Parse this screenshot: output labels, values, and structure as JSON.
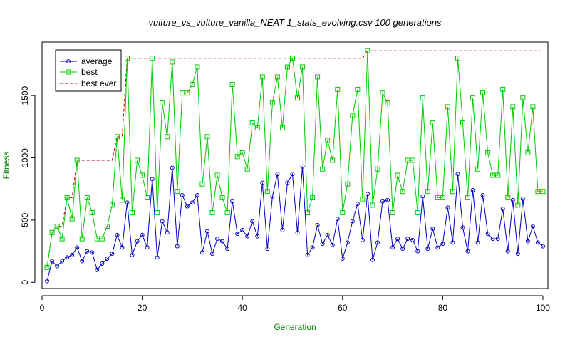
{
  "chart_data": {
    "type": "line",
    "title": "vulture_vs_vulture_vanilla_NEAT 1_stats_evolving.csv 100 generations",
    "xlabel": "Generation",
    "ylabel": "Fitness",
    "xlim": [
      0,
      101
    ],
    "ylim": [
      -50,
      1930
    ],
    "xticks": [
      0,
      20,
      40,
      60,
      80,
      100
    ],
    "yticks": [
      0,
      500,
      1000,
      1500
    ],
    "legend_position": "top-left",
    "grid": false,
    "colors": {
      "average": "#0000c0",
      "best": "#00cc00",
      "best_ever": "#aa0000",
      "axis_label": "#008000"
    },
    "x": [
      1,
      2,
      3,
      4,
      5,
      6,
      7,
      8,
      9,
      10,
      11,
      12,
      13,
      14,
      15,
      16,
      17,
      18,
      19,
      20,
      21,
      22,
      23,
      24,
      25,
      26,
      27,
      28,
      29,
      30,
      31,
      32,
      33,
      34,
      35,
      36,
      37,
      38,
      39,
      40,
      41,
      42,
      43,
      44,
      45,
      46,
      47,
      48,
      49,
      50,
      51,
      52,
      53,
      54,
      55,
      56,
      57,
      58,
      59,
      60,
      61,
      62,
      63,
      64,
      65,
      66,
      67,
      68,
      69,
      70,
      71,
      72,
      73,
      74,
      75,
      76,
      77,
      78,
      79,
      80,
      81,
      82,
      83,
      84,
      85,
      86,
      87,
      88,
      89,
      90,
      91,
      92,
      93,
      94,
      95,
      96,
      97,
      98,
      99,
      100
    ],
    "series": [
      {
        "name": "average",
        "style": "solid-circle",
        "values": [
          10,
          170,
          130,
          170,
          200,
          220,
          280,
          170,
          250,
          240,
          100,
          150,
          190,
          230,
          380,
          280,
          640,
          220,
          330,
          380,
          280,
          830,
          200,
          490,
          400,
          920,
          290,
          700,
          610,
          640,
          700,
          240,
          410,
          230,
          350,
          330,
          270,
          650,
          390,
          420,
          370,
          490,
          370,
          800,
          270,
          690,
          870,
          420,
          800,
          870,
          400,
          930,
          220,
          280,
          460,
          310,
          380,
          300,
          510,
          190,
          320,
          490,
          630,
          340,
          710,
          180,
          320,
          650,
          660,
          280,
          350,
          270,
          350,
          340,
          250,
          690,
          270,
          430,
          280,
          310,
          600,
          320,
          870,
          440,
          250,
          740,
          320,
          700,
          390,
          350,
          350,
          590,
          250,
          660,
          230,
          670,
          330,
          450,
          320,
          290
        ]
      },
      {
        "name": "best",
        "style": "solid-square",
        "values": [
          120,
          400,
          450,
          350,
          680,
          510,
          980,
          350,
          680,
          560,
          350,
          350,
          450,
          620,
          1170,
          660,
          1800,
          560,
          980,
          860,
          680,
          1800,
          560,
          1440,
          1170,
          1770,
          730,
          1520,
          1520,
          1590,
          1730,
          790,
          1170,
          560,
          860,
          680,
          560,
          1590,
          1010,
          1040,
          910,
          1280,
          1240,
          1650,
          730,
          1440,
          1650,
          1240,
          1730,
          1800,
          1480,
          1730,
          560,
          680,
          1650,
          910,
          1140,
          980,
          1550,
          560,
          790,
          1340,
          1550,
          670,
          1860,
          620,
          910,
          1520,
          1440,
          560,
          860,
          730,
          980,
          980,
          560,
          1480,
          730,
          1280,
          680,
          680,
          1410,
          730,
          1800,
          1280,
          680,
          1480,
          910,
          1520,
          1040,
          860,
          860,
          1550,
          680,
          1410,
          620,
          1480,
          1040,
          1410,
          730,
          730
        ]
      },
      {
        "name": "best ever",
        "style": "dashed",
        "values": [
          120,
          400,
          450,
          450,
          680,
          680,
          980,
          980,
          980,
          980,
          980,
          980,
          980,
          980,
          1170,
          1170,
          1800,
          1800,
          1800,
          1800,
          1800,
          1800,
          1800,
          1800,
          1800,
          1800,
          1800,
          1800,
          1800,
          1800,
          1800,
          1800,
          1800,
          1800,
          1800,
          1800,
          1800,
          1800,
          1800,
          1800,
          1800,
          1800,
          1800,
          1800,
          1800,
          1800,
          1800,
          1800,
          1800,
          1800,
          1800,
          1800,
          1800,
          1800,
          1800,
          1800,
          1800,
          1800,
          1800,
          1800,
          1800,
          1800,
          1800,
          1800,
          1860,
          1860,
          1860,
          1860,
          1860,
          1860,
          1860,
          1860,
          1860,
          1860,
          1860,
          1860,
          1860,
          1860,
          1860,
          1860,
          1860,
          1860,
          1860,
          1860,
          1860,
          1860,
          1860,
          1860,
          1860,
          1860,
          1860,
          1860,
          1860,
          1860,
          1860,
          1860,
          1860,
          1860,
          1860,
          1860
        ]
      }
    ]
  }
}
